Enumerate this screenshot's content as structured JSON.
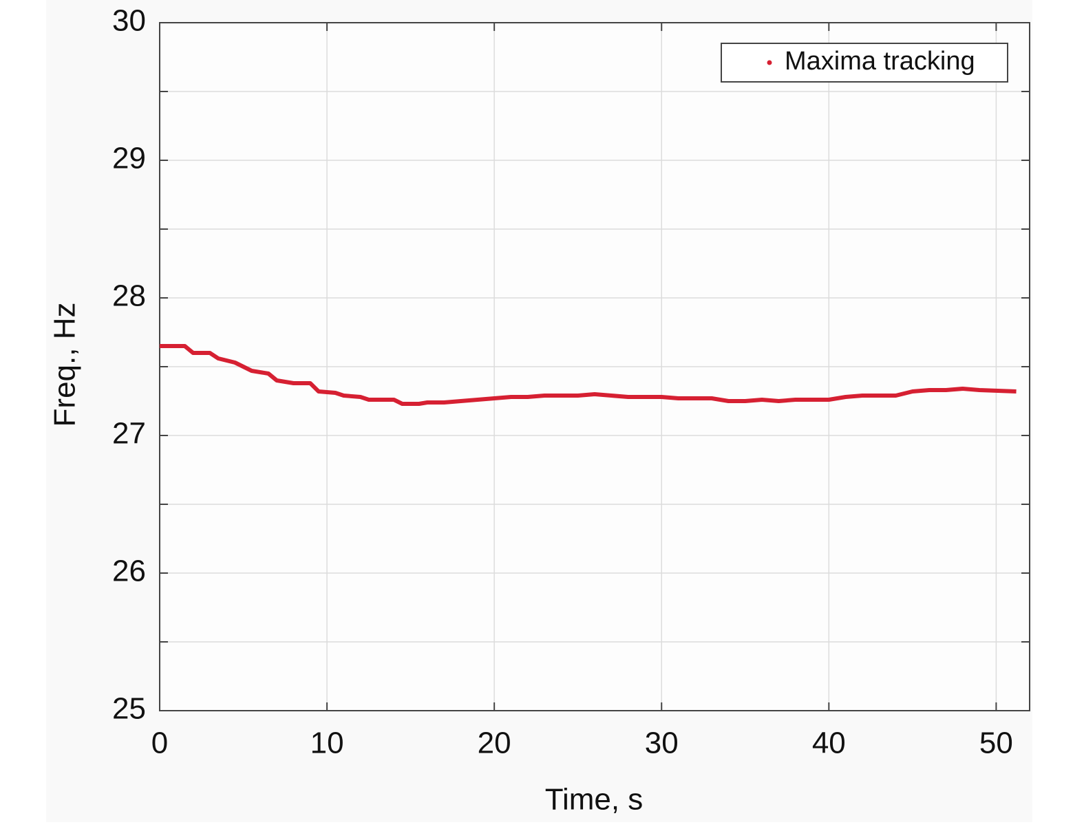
{
  "chart_data": {
    "type": "line",
    "x_label": "Time, s",
    "y_label": "Freq., Hz",
    "x": [
      0,
      1.5,
      2,
      3,
      3.5,
      4.5,
      5,
      5.5,
      6.5,
      7,
      8,
      9,
      9.5,
      10.5,
      11,
      12,
      12.5,
      13,
      14,
      14.5,
      15.5,
      16,
      17,
      18,
      19,
      20,
      21,
      22,
      23,
      24,
      25,
      26,
      27,
      28,
      30,
      31,
      33,
      34,
      35,
      36,
      37,
      38,
      40,
      41,
      42,
      44,
      45,
      46,
      47,
      48,
      49,
      51.2
    ],
    "series": [
      {
        "name": "Maxima tracking",
        "color": "#d62032",
        "values": [
          27.65,
          27.65,
          27.6,
          27.6,
          27.56,
          27.53,
          27.5,
          27.47,
          27.45,
          27.4,
          27.38,
          27.38,
          27.32,
          27.31,
          27.29,
          27.28,
          27.26,
          27.26,
          27.26,
          27.23,
          27.23,
          27.24,
          27.24,
          27.25,
          27.26,
          27.27,
          27.28,
          27.28,
          27.29,
          27.29,
          27.29,
          27.3,
          27.29,
          27.28,
          27.28,
          27.27,
          27.27,
          27.25,
          27.25,
          27.26,
          27.25,
          27.26,
          27.26,
          27.28,
          27.29,
          27.29,
          27.32,
          27.33,
          27.33,
          27.34,
          27.33,
          27.32
        ]
      }
    ],
    "xlim": [
      0,
      52
    ],
    "xticks": [
      0,
      10,
      20,
      30,
      40,
      50
    ],
    "ylim": [
      25,
      30
    ],
    "yticks": [
      25,
      26,
      27,
      28,
      29,
      30
    ],
    "yminor": [
      25.5,
      26.5,
      27.5,
      28.5,
      29.5
    ],
    "grid": true,
    "legend": "upper right"
  }
}
